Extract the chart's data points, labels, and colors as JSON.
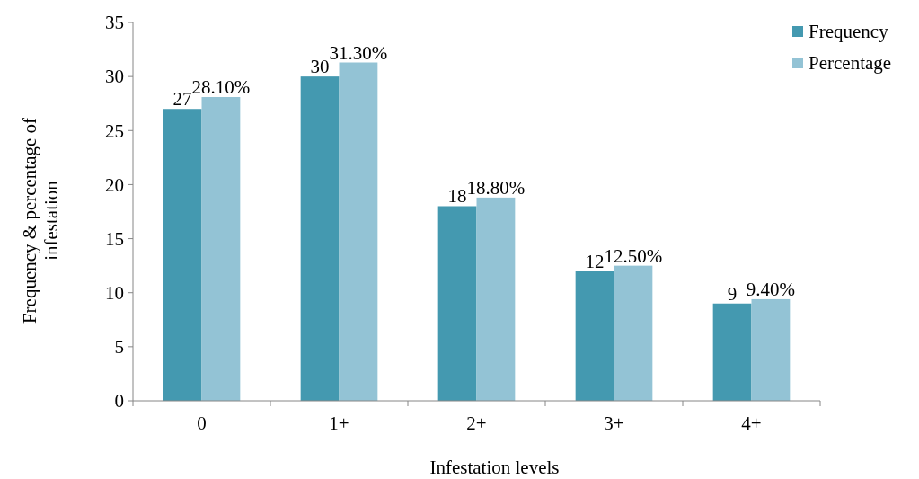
{
  "chart_data": {
    "type": "bar",
    "xlabel": "Infestation levels",
    "ylabel": "Frequency & percentage of infestation",
    "categories": [
      "0",
      "1+",
      "2+",
      "3+",
      "4+"
    ],
    "series": [
      {
        "name": "Frequency",
        "color": "#4499b0",
        "values": [
          27,
          30,
          18,
          12,
          9
        ],
        "value_labels": [
          "27",
          "30",
          "18",
          "12",
          "9"
        ]
      },
      {
        "name": "Percentage",
        "color": "#93c3d5",
        "values": [
          28.1,
          31.3,
          18.8,
          12.5,
          9.4
        ],
        "value_labels": [
          "28.10%",
          "31.30%",
          "18.80%",
          "12.50%",
          "9.40%"
        ]
      }
    ],
    "ylim": [
      0,
      35
    ],
    "yticks": [
      0,
      5,
      10,
      15,
      20,
      25,
      30,
      35
    ],
    "grid": false,
    "legend": "top right"
  }
}
